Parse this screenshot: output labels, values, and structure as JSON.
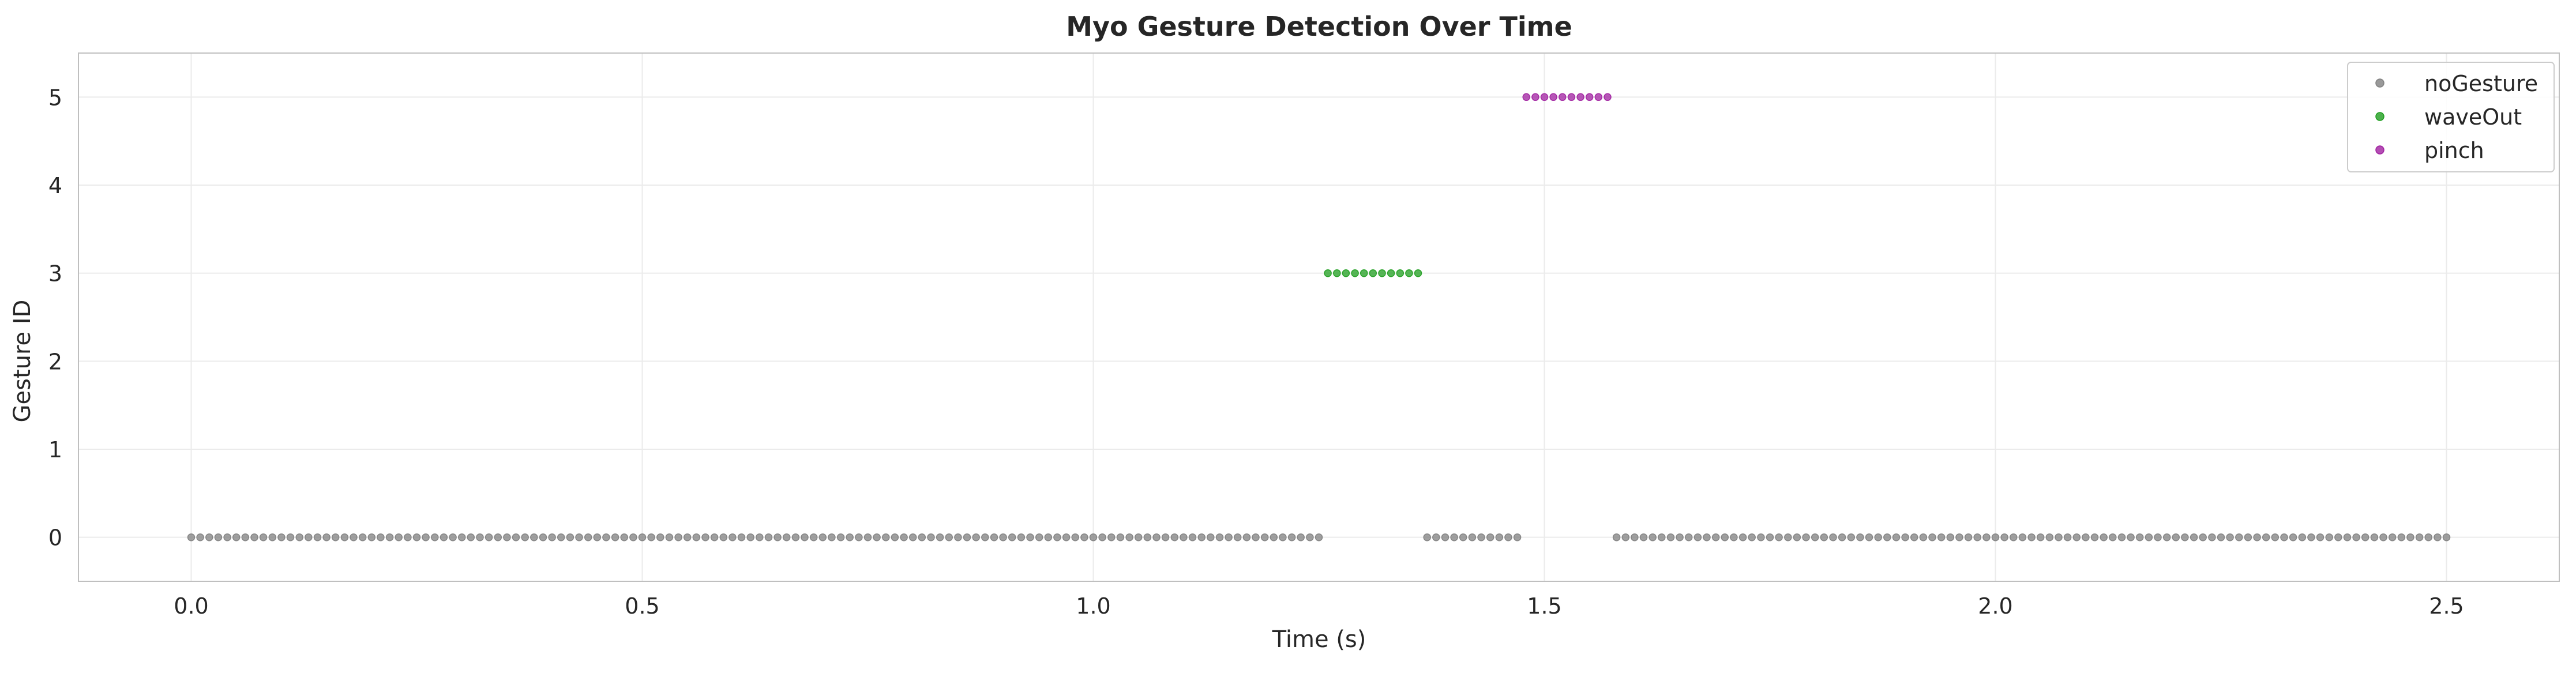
{
  "chart_data": {
    "type": "scatter",
    "title": "Myo Gesture Detection Over Time",
    "xlabel": "Time (s)",
    "ylabel": "Gesture ID",
    "xlim": [
      -0.125,
      2.625
    ],
    "ylim": [
      -0.5,
      5.5
    ],
    "xticks": [
      0.0,
      0.5,
      1.0,
      1.5,
      2.0,
      2.5
    ],
    "xtick_labels": [
      "0.0",
      "0.5",
      "1.0",
      "1.5",
      "2.0",
      "2.5"
    ],
    "yticks": [
      0,
      1,
      2,
      3,
      4,
      5
    ],
    "ytick_labels": [
      "0",
      "1",
      "2",
      "3",
      "4",
      "5"
    ],
    "grid": true,
    "legend_position": "top-right",
    "sample_interval_s": 0.01,
    "series": [
      {
        "name": "noGesture",
        "gesture_id": 0,
        "color": "#808080",
        "segments": [
          [
            0.0,
            1.25
          ],
          [
            1.37,
            1.47
          ],
          [
            1.58,
            2.5
          ]
        ]
      },
      {
        "name": "waveOut",
        "gesture_id": 3,
        "color": "#1f9e1f",
        "segments": [
          [
            1.26,
            1.36
          ]
        ]
      },
      {
        "name": "pinch",
        "gesture_id": 5,
        "color": "#a020a0",
        "segments": [
          [
            1.48,
            1.57
          ]
        ]
      }
    ]
  }
}
